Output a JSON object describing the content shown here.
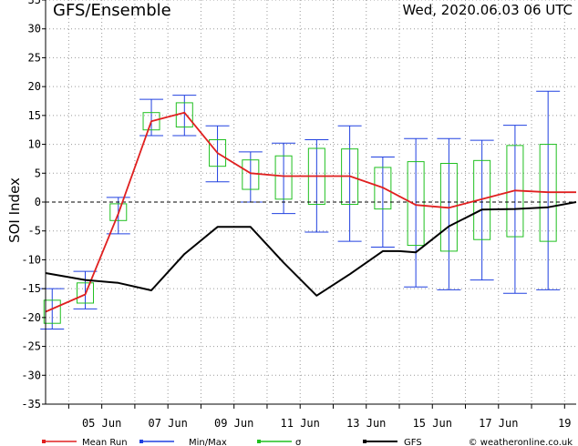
{
  "header": {
    "title": "GFS/Ensemble",
    "datetime": "Wed, 2020.06.03   06 UTC"
  },
  "credit": "© weatheronline.co.uk",
  "colors": {
    "mean": "#e02020",
    "minmax": "#2040e0",
    "sigma": "#20c020",
    "gfs": "#000000",
    "grid": "#9a9a9a"
  },
  "chart_data": {
    "type": "line",
    "title": "GFS/Ensemble",
    "ylabel": "SOI Index",
    "xlabel": "",
    "ylim": [
      -35,
      35
    ],
    "yticks": [
      -35,
      -30,
      -25,
      -20,
      -15,
      -10,
      -5,
      0,
      5,
      10,
      15,
      20,
      25,
      30,
      35
    ],
    "xlim": [
      3.3,
      19.35
    ],
    "xticks": [
      {
        "x": 5,
        "label": "05 Jun"
      },
      {
        "x": 7,
        "label": "07 Jun"
      },
      {
        "x": 9,
        "label": "09 Jun"
      },
      {
        "x": 11,
        "label": "11 Jun"
      },
      {
        "x": 13,
        "label": "13 Jun"
      },
      {
        "x": 15,
        "label": "15 Jun"
      },
      {
        "x": 17,
        "label": "17 Jun"
      },
      {
        "x": 19,
        "label": "19"
      }
    ],
    "grid": true,
    "legend_position": "bottom",
    "legend": [
      {
        "label": "Mean Run",
        "key": "mean"
      },
      {
        "label": "Min/Max",
        "key": "minmax"
      },
      {
        "label": "σ",
        "key": "sigma"
      },
      {
        "label": "GFS",
        "key": "gfs"
      }
    ],
    "series": [
      {
        "name": "Mean Run",
        "key": "mean",
        "x": [
          3.3,
          4.5,
          5.5,
          6.5,
          7.5,
          8.5,
          9.5,
          10.5,
          11.5,
          12.5,
          13.5,
          14.5,
          15.5,
          16.5,
          17.5,
          18.5,
          19.35
        ],
        "y": [
          -19,
          -16,
          -2,
          14,
          15.5,
          8.5,
          5,
          4.5,
          4.5,
          4.5,
          2.5,
          -0.5,
          -1,
          0.5,
          2,
          1.7,
          1.7
        ]
      },
      {
        "name": "GFS",
        "key": "gfs",
        "x": [
          3.3,
          4.5,
          5.5,
          6.5,
          7.5,
          8.5,
          9.5,
          10.5,
          11.5,
          12.5,
          13.5,
          14,
          14.5,
          15.5,
          16.5,
          17.5,
          18.5,
          19.35
        ],
        "y": [
          -12.3,
          -13.5,
          -14,
          -15.3,
          -9,
          -4.3,
          -4.3,
          -10.5,
          -16.2,
          -12.5,
          -8.5,
          -8.5,
          -8.7,
          -4.2,
          -1.3,
          -1.2,
          -0.9,
          0
        ]
      }
    ],
    "ensemble": [
      {
        "x": 3.5,
        "min": -22,
        "max": -15,
        "sigma_low": -21,
        "sigma_high": -17
      },
      {
        "x": 4.5,
        "min": -18.5,
        "max": -12,
        "sigma_low": -17.5,
        "sigma_high": -14
      },
      {
        "x": 5.5,
        "min": -5.5,
        "max": 0.8,
        "sigma_low": -3.2,
        "sigma_high": -0.3
      },
      {
        "x": 6.5,
        "min": 11.5,
        "max": 17.8,
        "sigma_low": 12.5,
        "sigma_high": 15.5
      },
      {
        "x": 7.5,
        "min": 11.5,
        "max": 18.5,
        "sigma_low": 13,
        "sigma_high": 17.2
      },
      {
        "x": 8.5,
        "min": 3.5,
        "max": 13.2,
        "sigma_low": 6.2,
        "sigma_high": 10.8
      },
      {
        "x": 9.5,
        "min": 0,
        "max": 8.7,
        "sigma_low": 2.2,
        "sigma_high": 7.3
      },
      {
        "x": 10.5,
        "min": -2,
        "max": 10.2,
        "sigma_low": 0.5,
        "sigma_high": 8
      },
      {
        "x": 11.5,
        "min": -5.2,
        "max": 10.8,
        "sigma_low": -0.4,
        "sigma_high": 9.3
      },
      {
        "x": 12.5,
        "min": -6.8,
        "max": 13.2,
        "sigma_low": -0.4,
        "sigma_high": 9.2
      },
      {
        "x": 13.5,
        "min": -7.8,
        "max": 7.8,
        "sigma_low": -1.2,
        "sigma_high": 6
      },
      {
        "x": 14.5,
        "min": -14.7,
        "max": 11,
        "sigma_low": -7.5,
        "sigma_high": 7
      },
      {
        "x": 15.5,
        "min": -15.2,
        "max": 11,
        "sigma_low": -8.5,
        "sigma_high": 6.7
      },
      {
        "x": 16.5,
        "min": -13.5,
        "max": 10.7,
        "sigma_low": -6.5,
        "sigma_high": 7.2
      },
      {
        "x": 17.5,
        "min": -15.8,
        "max": 13.3,
        "sigma_low": -6,
        "sigma_high": 9.8
      },
      {
        "x": 18.5,
        "min": -15.2,
        "max": 19.2,
        "sigma_low": -6.8,
        "sigma_high": 10
      }
    ]
  }
}
